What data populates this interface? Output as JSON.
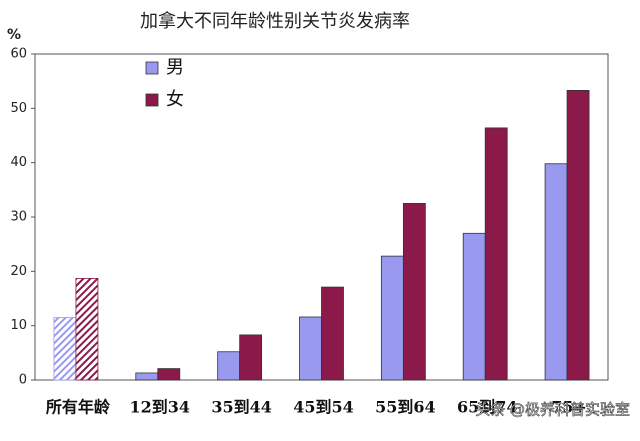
{
  "chart_data": {
    "type": "bar",
    "title": "加拿大不同年龄性别关节炎发病率",
    "y_label": "%",
    "categories": [
      "所有年龄",
      "12到34",
      "35到44",
      "45到54",
      "55到64",
      "65到74",
      "75+"
    ],
    "series": [
      {
        "name": "男",
        "color": "#9999f0",
        "values": [
          11.5,
          1.3,
          5.2,
          11.6,
          22.8,
          27,
          39.8
        ]
      },
      {
        "name": "女",
        "color": "#8b1a4a",
        "values": [
          18.7,
          2.1,
          8.3,
          17.1,
          32.5,
          46.4,
          53.3
        ]
      }
    ],
    "ylim": [
      0,
      60
    ],
    "yticks": [
      0,
      10,
      20,
      30,
      40,
      50,
      60
    ],
    "grid": false,
    "legend": "top-left",
    "watermark": "头条 @极养科普实验室"
  }
}
